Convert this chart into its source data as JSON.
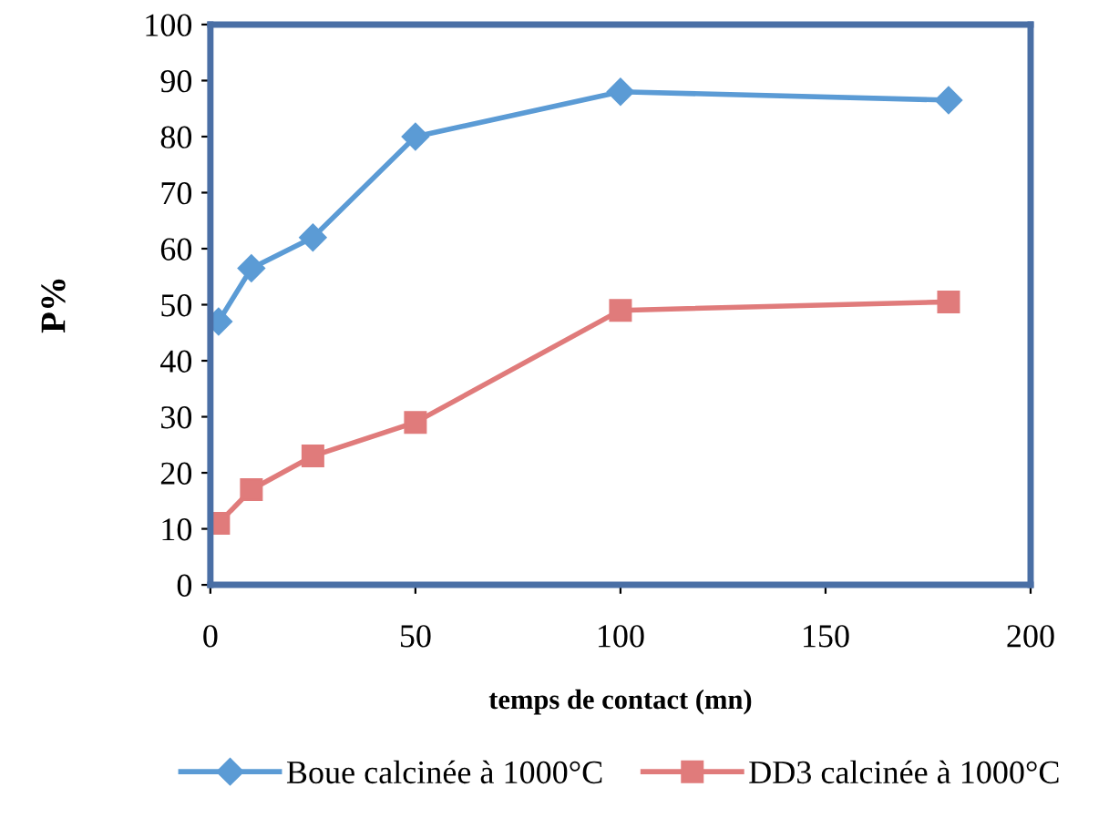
{
  "chart_data": {
    "type": "line",
    "xlabel": "temps de contact (mn)",
    "ylabel": "P%",
    "x": [
      2,
      10,
      25,
      50,
      100,
      180
    ],
    "series": [
      {
        "name": "Boue calcinée à 1000°C",
        "color": "#5b9bd5",
        "marker": "diamond",
        "values": [
          47,
          56.5,
          62,
          80,
          88,
          86.5
        ]
      },
      {
        "name": "DD3 calcinée à 1000°C",
        "color": "#e07b7b",
        "marker": "square",
        "values": [
          11,
          17,
          23,
          29,
          49,
          50.5
        ]
      }
    ],
    "xlim": [
      0,
      200
    ],
    "xticks": [
      0,
      50,
      100,
      150,
      200
    ],
    "ylim": [
      0,
      100
    ],
    "yticks": [
      0,
      10,
      20,
      30,
      40,
      50,
      60,
      70,
      80,
      90,
      100
    ],
    "grid": false,
    "legend": "bottom",
    "line_style": "solid"
  }
}
